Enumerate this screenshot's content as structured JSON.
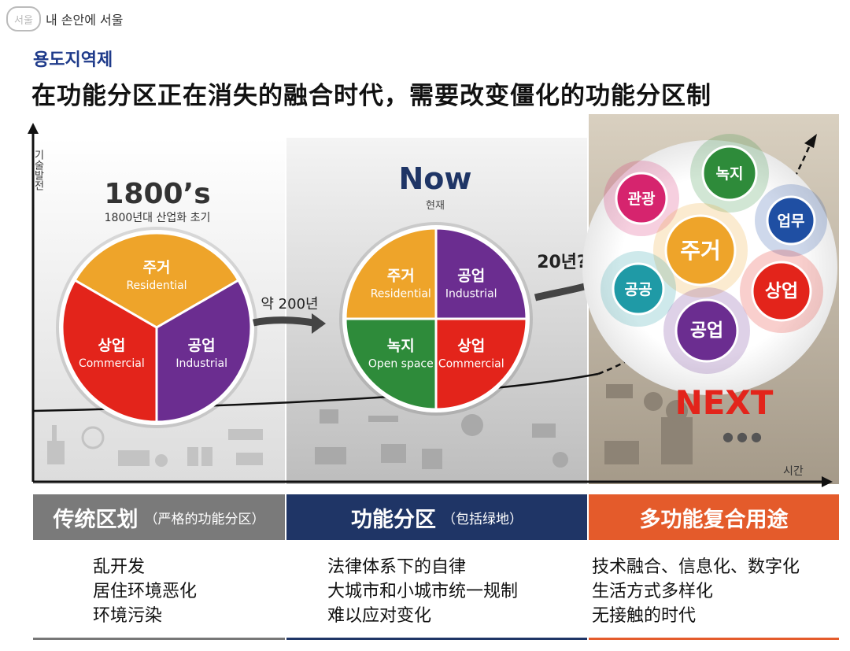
{
  "logo": {
    "mark": "서울",
    "text": "내 손안에 서울"
  },
  "section_title": "용도지역제",
  "headline": "在功能分区正在消失的融合时代，需要改变僵化的功能分区制",
  "axes": {
    "y_label": "기술발전",
    "x_label": "시간"
  },
  "era_1800": {
    "title": "1800’s",
    "subtitle": "1800년대 산업화 초기",
    "slices": [
      {
        "ko": "주거",
        "en": "Residential",
        "color": "#eea42a"
      },
      {
        "ko": "공업",
        "en": "Industrial",
        "color": "#6b2d90"
      },
      {
        "ko": "상업",
        "en": "Commercial",
        "color": "#e3241b"
      }
    ]
  },
  "arrow_1": "약 200년",
  "era_now": {
    "title": "Now",
    "subtitle": "현재",
    "slices": [
      {
        "ko": "주거",
        "en": "Residential",
        "color": "#eea42a"
      },
      {
        "ko": "공업",
        "en": "Industrial",
        "color": "#6b2d90"
      },
      {
        "ko": "상업",
        "en": "Commercial",
        "color": "#e3241b"
      },
      {
        "ko": "녹지",
        "en": "Open space",
        "color": "#2e8b3a"
      }
    ]
  },
  "arrow_2": "20년?",
  "era_next": {
    "title": "NEXT",
    "dots": "●●●",
    "bubbles": [
      {
        "label": "녹지",
        "color": "#2e8b3a"
      },
      {
        "label": "관광",
        "color": "#d6246e"
      },
      {
        "label": "업무",
        "color": "#1f4fa3"
      },
      {
        "label": "주거",
        "color": "#eea42a"
      },
      {
        "label": "공공",
        "color": "#1f9aa6"
      },
      {
        "label": "상업",
        "color": "#e3241b"
      },
      {
        "label": "공업",
        "color": "#6b2d90"
      }
    ]
  },
  "columns": [
    {
      "title": "传统区划",
      "note": "（严格的功能分区）",
      "items": [
        "乱开发",
        "居住环境恶化",
        "环境污染"
      ]
    },
    {
      "title": "功能分区",
      "note": "（包括绿地）",
      "items": [
        "法律体系下的自律",
        "大城市和小城市统一规制",
        "难以应对变化"
      ]
    },
    {
      "title": "多功能复合用途",
      "note": "",
      "items": [
        "技术融合、信息化、数字化",
        "生活方式多样化",
        "无接触的时代"
      ]
    }
  ]
}
